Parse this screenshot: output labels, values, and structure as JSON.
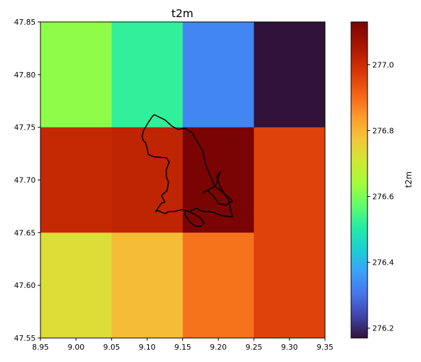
{
  "chart_data": {
    "type": "heatmap",
    "title": "t2m",
    "xlabel": "",
    "ylabel": "",
    "xlim": [
      8.95,
      9.35
    ],
    "ylim": [
      47.55,
      47.85
    ],
    "x_ticks": [
      "8.95",
      "9.00",
      "9.05",
      "9.10",
      "9.15",
      "9.20",
      "9.25",
      "9.30",
      "9.35"
    ],
    "y_ticks": [
      "47.55",
      "47.60",
      "47.65",
      "47.70",
      "47.75",
      "47.80",
      "47.85"
    ],
    "x_edges": [
      8.95,
      9.05,
      9.15,
      9.25,
      9.35
    ],
    "y_edges": [
      47.85,
      47.75,
      47.65,
      47.55
    ],
    "grid": false,
    "colormap": "turbo",
    "values": [
      [
        276.62,
        276.52,
        276.33,
        276.17
      ],
      [
        277.01,
        277.02,
        277.13,
        276.96
      ],
      [
        276.73,
        276.79,
        276.89,
        276.96
      ]
    ],
    "colorbar": {
      "label": "t2m",
      "range": [
        276.17,
        277.13
      ],
      "ticks": [
        "276.2",
        "276.4",
        "276.6",
        "276.8",
        "277.0"
      ],
      "tick_values": [
        276.2,
        276.4,
        276.6,
        276.8,
        277.0
      ]
    },
    "outline_lonlat": [
      [
        9.11,
        47.762
      ],
      [
        9.125,
        47.757
      ],
      [
        9.135,
        47.751
      ],
      [
        9.143,
        47.748
      ],
      [
        9.153,
        47.749
      ],
      [
        9.163,
        47.745
      ],
      [
        9.17,
        47.737
      ],
      [
        9.178,
        47.728
      ],
      [
        9.182,
        47.715
      ],
      [
        9.19,
        47.702
      ],
      [
        9.195,
        47.694
      ],
      [
        9.205,
        47.689
      ],
      [
        9.212,
        47.685
      ],
      [
        9.22,
        47.68
      ],
      [
        9.21,
        47.676
      ],
      [
        9.2,
        47.678
      ],
      [
        9.193,
        47.685
      ],
      [
        9.185,
        47.69
      ],
      [
        9.178,
        47.688
      ],
      [
        9.196,
        47.694
      ],
      [
        9.203,
        47.708
      ],
      [
        9.198,
        47.703
      ],
      [
        9.203,
        47.693
      ],
      [
        9.215,
        47.68
      ],
      [
        9.218,
        47.67
      ],
      [
        9.22,
        47.665
      ],
      [
        9.205,
        47.666
      ],
      [
        9.19,
        47.67
      ],
      [
        9.18,
        47.67
      ],
      [
        9.168,
        47.673
      ],
      [
        9.16,
        47.67
      ],
      [
        9.15,
        47.672
      ],
      [
        9.138,
        47.67
      ],
      [
        9.13,
        47.67
      ],
      [
        9.125,
        47.668
      ],
      [
        9.115,
        47.671
      ],
      [
        9.112,
        47.67
      ],
      [
        9.12,
        47.678
      ],
      [
        9.125,
        47.679
      ],
      [
        9.12,
        47.685
      ],
      [
        9.128,
        47.69
      ],
      [
        9.13,
        47.698
      ],
      [
        9.127,
        47.703
      ],
      [
        9.127,
        47.71
      ],
      [
        9.131,
        47.717
      ],
      [
        9.127,
        47.721
      ],
      [
        9.11,
        47.722
      ],
      [
        9.102,
        47.724
      ],
      [
        9.098,
        47.735
      ],
      [
        9.094,
        47.738
      ],
      [
        9.093,
        47.742
      ],
      [
        9.095,
        47.747
      ],
      [
        9.102,
        47.755
      ],
      [
        9.107,
        47.76
      ],
      [
        9.11,
        47.762
      ]
    ],
    "outline_lonlat_island": [
      [
        9.152,
        47.668
      ],
      [
        9.16,
        47.66
      ],
      [
        9.168,
        47.656
      ],
      [
        9.175,
        47.656
      ],
      [
        9.18,
        47.659
      ],
      [
        9.175,
        47.664
      ],
      [
        9.165,
        47.668
      ],
      [
        9.155,
        47.671
      ],
      [
        9.152,
        47.668
      ]
    ]
  }
}
